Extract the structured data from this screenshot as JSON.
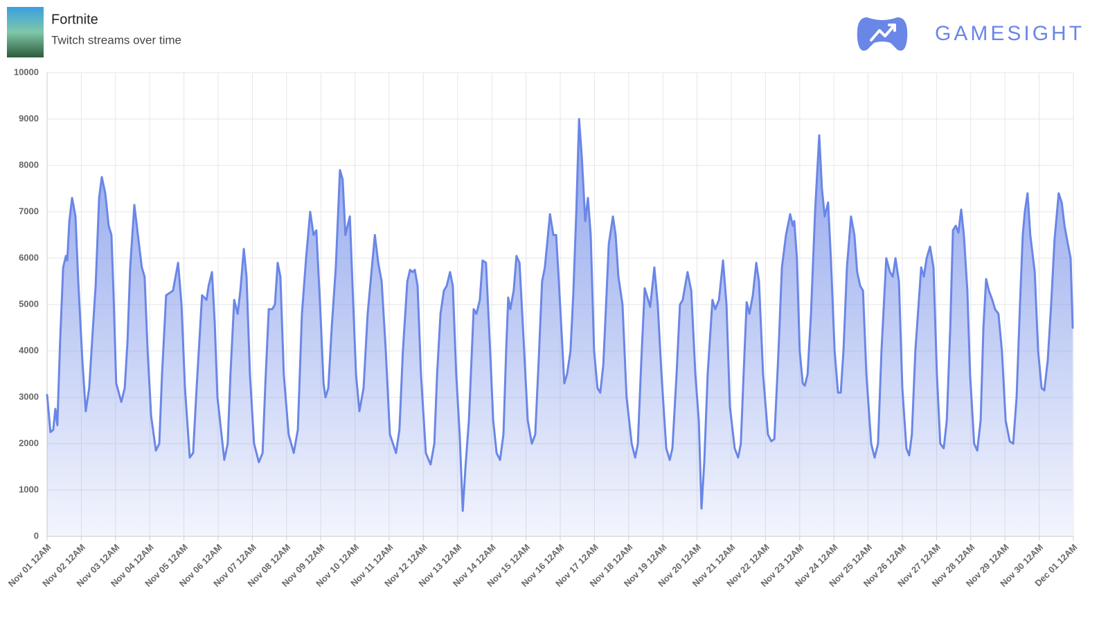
{
  "header": {
    "title": "Fortnite",
    "subtitle": "Twitch streams over time",
    "brand": "GAMESIGHT"
  },
  "chart_data": {
    "type": "area",
    "color": "#6a86e6",
    "grid": true,
    "xlim": [
      0,
      30
    ],
    "ylim": [
      0,
      10000
    ],
    "yticks": [
      0,
      1000,
      2000,
      3000,
      4000,
      5000,
      6000,
      7000,
      8000,
      9000,
      10000
    ],
    "xticks": [
      {
        "value": 0,
        "label": "Nov 01 12AM"
      },
      {
        "value": 1,
        "label": "Nov 02 12AM"
      },
      {
        "value": 2,
        "label": "Nov 03 12AM"
      },
      {
        "value": 3,
        "label": "Nov 04 12AM"
      },
      {
        "value": 4,
        "label": "Nov 05 12AM"
      },
      {
        "value": 5,
        "label": "Nov 06 12AM"
      },
      {
        "value": 6,
        "label": "Nov 07 12AM"
      },
      {
        "value": 7,
        "label": "Nov 08 12AM"
      },
      {
        "value": 8,
        "label": "Nov 09 12AM"
      },
      {
        "value": 9,
        "label": "Nov 10 12AM"
      },
      {
        "value": 10,
        "label": "Nov 11 12AM"
      },
      {
        "value": 11,
        "label": "Nov 12 12AM"
      },
      {
        "value": 12,
        "label": "Nov 13 12AM"
      },
      {
        "value": 13,
        "label": "Nov 14 12AM"
      },
      {
        "value": 14,
        "label": "Nov 15 12AM"
      },
      {
        "value": 15,
        "label": "Nov 16 12AM"
      },
      {
        "value": 16,
        "label": "Nov 17 12AM"
      },
      {
        "value": 17,
        "label": "Nov 18 12AM"
      },
      {
        "value": 18,
        "label": "Nov 19 12AM"
      },
      {
        "value": 19,
        "label": "Nov 20 12AM"
      },
      {
        "value": 20,
        "label": "Nov 21 12AM"
      },
      {
        "value": 21,
        "label": "Nov 22 12AM"
      },
      {
        "value": 22,
        "label": "Nov 23 12AM"
      },
      {
        "value": 23,
        "label": "Nov 24 12AM"
      },
      {
        "value": 24,
        "label": "Nov 25 12AM"
      },
      {
        "value": 25,
        "label": "Nov 26 12AM"
      },
      {
        "value": 26,
        "label": "Nov 27 12AM"
      },
      {
        "value": 27,
        "label": "Nov 28 12AM"
      },
      {
        "value": 28,
        "label": "Nov 29 12AM"
      },
      {
        "value": 29,
        "label": "Nov 30 12AM"
      },
      {
        "value": 30,
        "label": "Dec 01 12AM"
      }
    ],
    "x": [
      0,
      0.1,
      0.18,
      0.24,
      0.3,
      0.38,
      0.47,
      0.55,
      0.59,
      0.65,
      0.73,
      0.83,
      0.91,
      1.03,
      1.13,
      1.23,
      1.34,
      1.42,
      1.52,
      1.6,
      1.7,
      1.8,
      1.88,
      1.94,
      2.02,
      2.17,
      2.27,
      2.35,
      2.43,
      2.55,
      2.67,
      2.77,
      2.85,
      2.94,
      3.04,
      3.18,
      3.28,
      3.36,
      3.48,
      3.58,
      3.68,
      3.83,
      3.93,
      4.03,
      4.17,
      4.27,
      4.37,
      4.53,
      4.66,
      4.72,
      4.82,
      4.9,
      4.98,
      5.18,
      5.28,
      5.36,
      5.47,
      5.57,
      5.65,
      5.75,
      5.83,
      5.93,
      6.05,
      6.19,
      6.3,
      6.38,
      6.48,
      6.58,
      6.66,
      6.74,
      6.82,
      6.92,
      7.06,
      7.21,
      7.33,
      7.45,
      7.57,
      7.69,
      7.79,
      7.87,
      7.98,
      8.08,
      8.14,
      8.22,
      8.32,
      8.44,
      8.56,
      8.64,
      8.72,
      8.85,
      8.95,
      9.03,
      9.13,
      9.25,
      9.37,
      9.47,
      9.58,
      9.68,
      9.78,
      9.9,
      10.02,
      10.2,
      10.3,
      10.4,
      10.53,
      10.61,
      10.69,
      10.75,
      10.83,
      10.93,
      11.07,
      11.21,
      11.32,
      11.4,
      11.5,
      11.6,
      11.68,
      11.78,
      11.86,
      11.96,
      12.06,
      12.15,
      12.23,
      12.33,
      12.47,
      12.55,
      12.65,
      12.73,
      12.83,
      12.94,
      13.04,
      13.14,
      13.24,
      13.34,
      13.42,
      13.48,
      13.54,
      13.64,
      13.72,
      13.81,
      13.91,
      14.05,
      14.17,
      14.27,
      14.37,
      14.47,
      14.55,
      14.7,
      14.8,
      14.88,
      14.96,
      15.12,
      15.2,
      15.3,
      15.38,
      15.47,
      15.55,
      15.63,
      15.73,
      15.81,
      15.89,
      15.99,
      16.09,
      16.17,
      16.26,
      16.34,
      16.42,
      16.54,
      16.62,
      16.7,
      16.82,
      16.94,
      17.09,
      17.19,
      17.27,
      17.37,
      17.47,
      17.55,
      17.63,
      17.75,
      17.85,
      17.96,
      18.1,
      18.2,
      18.28,
      18.4,
      18.5,
      18.58,
      18.72,
      18.83,
      18.95,
      19.05,
      19.13,
      19.21,
      19.31,
      19.45,
      19.53,
      19.64,
      19.76,
      19.86,
      19.96,
      20.1,
      20.2,
      20.28,
      20.36,
      20.45,
      20.53,
      20.63,
      20.73,
      20.81,
      20.93,
      21.07,
      21.17,
      21.26,
      21.38,
      21.48,
      21.6,
      21.72,
      21.8,
      21.84,
      21.92,
      22.0,
      22.09,
      22.15,
      22.23,
      22.33,
      22.45,
      22.57,
      22.65,
      22.73,
      22.83,
      22.91,
      23.02,
      23.12,
      23.2,
      23.28,
      23.38,
      23.5,
      23.6,
      23.68,
      23.77,
      23.85,
      23.95,
      24.09,
      24.19,
      24.29,
      24.39,
      24.53,
      24.64,
      24.72,
      24.8,
      24.9,
      25.0,
      25.12,
      25.2,
      25.28,
      25.38,
      25.55,
      25.63,
      25.71,
      25.81,
      25.91,
      26.01,
      26.11,
      26.21,
      26.3,
      26.4,
      26.48,
      26.56,
      26.64,
      26.72,
      26.8,
      26.9,
      26.98,
      27.1,
      27.19,
      27.29,
      27.37,
      27.45,
      27.53,
      27.63,
      27.71,
      27.81,
      27.91,
      28.02,
      28.14,
      28.24,
      28.34,
      28.44,
      28.52,
      28.58,
      28.66,
      28.74,
      28.87,
      28.97,
      29.07,
      29.15,
      29.25,
      29.35,
      29.45,
      29.57,
      29.66,
      29.74,
      29.84,
      29.92,
      29.98
    ],
    "values": [
      3050,
      2250,
      2300,
      2750,
      2400,
      4200,
      5800,
      6050,
      5950,
      6800,
      7300,
      6900,
      5500,
      3800,
      2700,
      3200,
      4500,
      5400,
      7300,
      7750,
      7400,
      6700,
      6500,
      5300,
      3300,
      2900,
      3200,
      4200,
      5800,
      7150,
      6400,
      5800,
      5600,
      4000,
      2600,
      1850,
      2000,
      3500,
      5200,
      5250,
      5300,
      5900,
      5000,
      3200,
      1700,
      1800,
      3200,
      5200,
      5100,
      5400,
      5700,
      4600,
      3000,
      1650,
      2000,
      3500,
      5100,
      4800,
      5300,
      6200,
      5600,
      3500,
      2000,
      1600,
      1800,
      3300,
      4900,
      4900,
      5000,
      5900,
      5600,
      3500,
      2200,
      1800,
      2300,
      4800,
      6000,
      7000,
      6500,
      6600,
      5000,
      3300,
      3000,
      3200,
      4500,
      5800,
      7900,
      7700,
      6500,
      6900,
      5000,
      3500,
      2700,
      3200,
      4800,
      5600,
      6500,
      5900,
      5500,
      4000,
      2200,
      1800,
      2300,
      4000,
      5500,
      5750,
      5700,
      5750,
      5400,
      3500,
      1800,
      1550,
      2000,
      3500,
      4800,
      5300,
      5400,
      5700,
      5400,
      3500,
      2200,
      550,
      1500,
      2500,
      4900,
      4800,
      5100,
      5950,
      5900,
      4200,
      2500,
      1800,
      1650,
      2200,
      4000,
      5150,
      4900,
      5300,
      6050,
      5900,
      4500,
      2500,
      2000,
      2200,
      3800,
      5500,
      5800,
      6950,
      6500,
      6500,
      5500,
      3300,
      3500,
      4000,
      5200,
      7000,
      9000,
      8200,
      6800,
      7300,
      6500,
      4000,
      3200,
      3100,
      3700,
      5000,
      6300,
      6900,
      6500,
      5600,
      5000,
      3000,
      2000,
      1700,
      2000,
      3800,
      5350,
      5150,
      4950,
      5800,
      5000,
      3500,
      1900,
      1650,
      1900,
      3500,
      5000,
      5100,
      5700,
      5300,
      3500,
      2500,
      600,
      1600,
      3500,
      5100,
      4900,
      5100,
      5950,
      5000,
      2800,
      1900,
      1700,
      2000,
      3500,
      5050,
      4800,
      5200,
      5900,
      5500,
      3500,
      2200,
      2050,
      2100,
      4000,
      5800,
      6500,
      6950,
      6700,
      6800,
      6000,
      4000,
      3300,
      3250,
      3500,
      4800,
      7000,
      8650,
      7500,
      6900,
      7200,
      6000,
      4000,
      3100,
      3100,
      4000,
      5800,
      6900,
      6500,
      5700,
      5400,
      5300,
      3500,
      2000,
      1700,
      2000,
      4000,
      6000,
      5700,
      5600,
      6000,
      5500,
      3200,
      1900,
      1750,
      2200,
      4000,
      5800,
      5600,
      6000,
      6250,
      5800,
      3500,
      2000,
      1900,
      2500,
      4500,
      6600,
      6700,
      6550,
      7050,
      6500,
      5300,
      3500,
      2000,
      1850,
      2500,
      4500,
      5550,
      5300,
      5100,
      4900,
      4800,
      4000,
      2500,
      2050,
      2000,
      3000,
      5000,
      6500,
      7000,
      7400,
      6500,
      5700,
      4000,
      3200,
      3150,
      3800,
      5000,
      6400,
      7400,
      7200,
      6700,
      6300,
      6000,
      4500
    ]
  }
}
